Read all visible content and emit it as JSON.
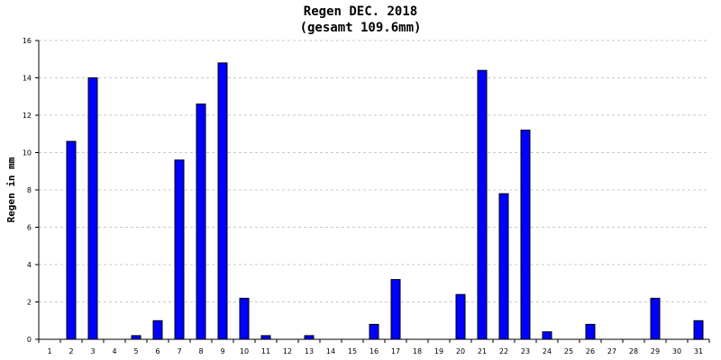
{
  "chart_data": {
    "type": "bar",
    "title": "Regen DEC. 2018",
    "subtitle": "(gesamt 109.6mm)",
    "xlabel": "",
    "ylabel": "Regen in mm",
    "categories": [
      "1",
      "2",
      "3",
      "4",
      "5",
      "6",
      "7",
      "8",
      "9",
      "10",
      "11",
      "12",
      "13",
      "14",
      "15",
      "16",
      "17",
      "18",
      "19",
      "20",
      "21",
      "22",
      "23",
      "24",
      "25",
      "26",
      "27",
      "28",
      "29",
      "30",
      "31"
    ],
    "values": [
      0,
      10.6,
      14.0,
      0,
      0.2,
      1.0,
      9.6,
      12.6,
      14.8,
      2.2,
      0.2,
      0,
      0.2,
      0,
      0,
      0.8,
      3.2,
      0,
      0,
      2.4,
      14.4,
      7.8,
      11.2,
      0.4,
      0,
      0.8,
      0,
      0,
      2.2,
      0,
      1.0
    ],
    "ylim": [
      0,
      16
    ],
    "yticks": [
      0,
      2,
      4,
      6,
      8,
      10,
      12,
      14,
      16
    ],
    "grid": true,
    "bar_color": "#0000ff",
    "bar_edge_color": "#000000"
  }
}
